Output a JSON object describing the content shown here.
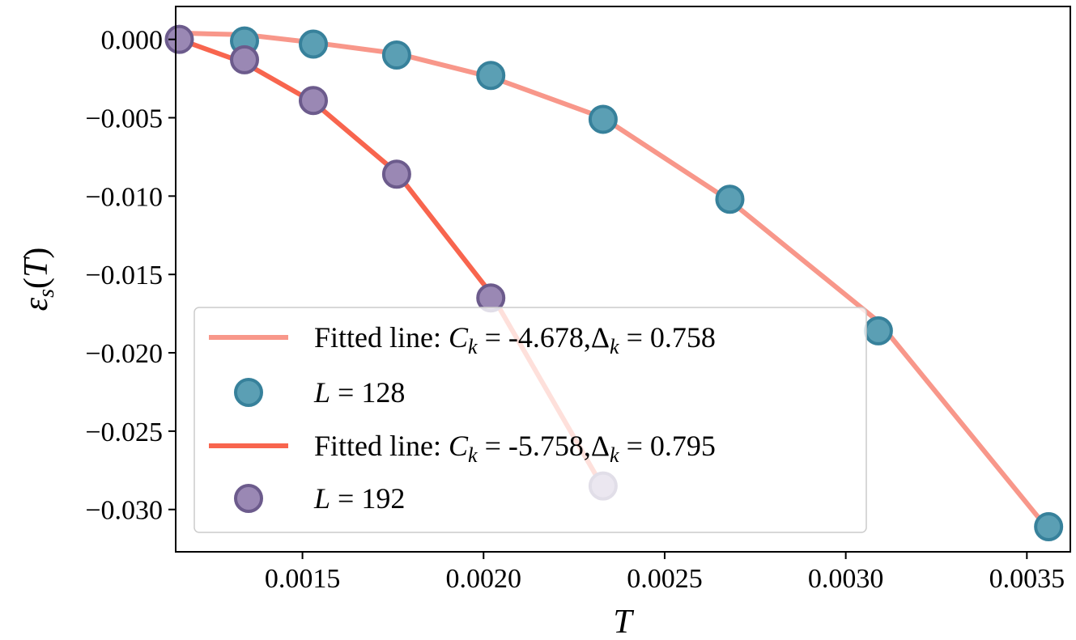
{
  "chart_data": {
    "type": "line",
    "title": "",
    "xlabel": "T",
    "ylabel": "ε_s(T)",
    "xlim": [
      0.00115,
      0.00362
    ],
    "ylim": [
      -0.0327,
      0.0021
    ],
    "xticks": [
      0.0015,
      0.002,
      0.0025,
      0.003,
      0.0035
    ],
    "xtick_labels": [
      "0.0015",
      "0.0020",
      "0.0025",
      "0.0030",
      "0.0035"
    ],
    "yticks": [
      0.0,
      -0.005,
      -0.01,
      -0.015,
      -0.02,
      -0.025,
      -0.03
    ],
    "ytick_labels": [
      "0.000",
      "−0.005",
      "−0.010",
      "−0.015",
      "−0.020",
      "−0.025",
      "−0.030"
    ],
    "grid": false,
    "legend_position": "lower-left",
    "series": [
      {
        "name": "Fitted line: C_k = -4.678,Δ_k = 0.758",
        "legend_label": {
          "prefix": "Fitted line: ",
          "c_sym": "C",
          "sub": "k",
          "c_val": " = -4.678,",
          "d_sym": "Δ",
          "d_val": " = 0.758"
        },
        "kind": "line",
        "color": "#F8978A",
        "x": [
          0.00116,
          0.00134,
          0.00153,
          0.00176,
          0.00202,
          0.00233,
          0.00268,
          0.00309,
          0.00356
        ],
        "y": [
          0.0004,
          0.0003,
          -0.0002,
          -0.0009,
          -0.0024,
          -0.005,
          -0.0103,
          -0.018,
          -0.0313
        ]
      },
      {
        "name": "L = 128",
        "legend_label": {
          "sym": "L",
          "val": " = 128"
        },
        "kind": "scatter",
        "color": "#5B9FB4",
        "edge_color": "#37819B",
        "x": [
          0.00134,
          0.00153,
          0.00176,
          0.00202,
          0.00233,
          0.00268,
          0.00309,
          0.00356
        ],
        "y": [
          -0.0001,
          -0.0003,
          -0.001,
          -0.0023,
          -0.0051,
          -0.0102,
          -0.0186,
          -0.0311
        ]
      },
      {
        "name": "Fitted line: C_k = -5.758,Δ_k = 0.795",
        "legend_label": {
          "prefix": "Fitted line: ",
          "c_sym": "C",
          "sub": "k",
          "c_val": " = -5.758,",
          "d_sym": "Δ",
          "d_val": " = 0.795"
        },
        "kind": "line",
        "color": "#F8654E",
        "x": [
          0.00116,
          0.00134,
          0.00153,
          0.00176,
          0.00202,
          0.00233
        ],
        "y": [
          0.0,
          -0.0015,
          -0.004,
          -0.0085,
          -0.0162,
          -0.0286
        ]
      },
      {
        "name": "L = 192",
        "legend_label": {
          "sym": "L",
          "val": " = 192"
        },
        "kind": "scatter",
        "color": "#9A88B4",
        "edge_color": "#6C5B8C",
        "x": [
          0.00116,
          0.00134,
          0.00153,
          0.00176,
          0.00202,
          0.00233
        ],
        "y": [
          0.0,
          -0.0013,
          -0.0039,
          -0.0086,
          -0.0165,
          -0.0285
        ]
      }
    ]
  }
}
